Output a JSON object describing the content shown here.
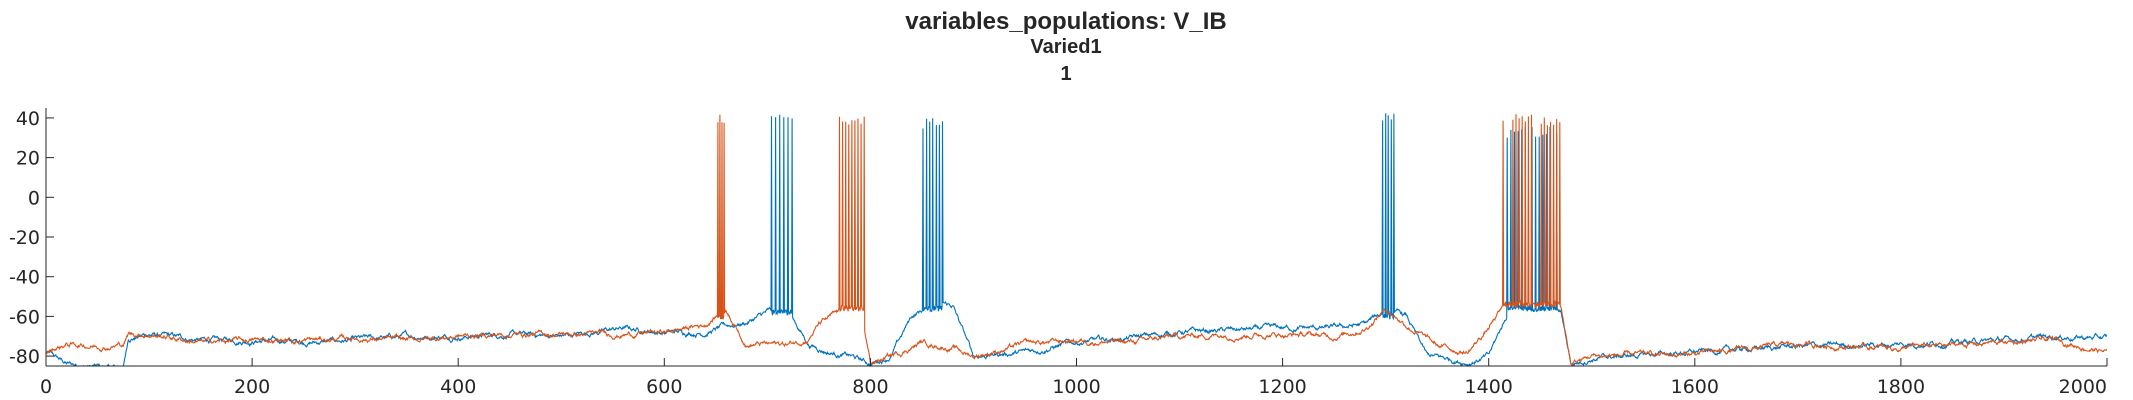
{
  "chart_data": {
    "type": "line",
    "title": "variables_populations: V_IB",
    "subtitle": "Varied1",
    "subtitle2": "1",
    "xlabel": "",
    "ylabel": "",
    "xlim": [
      0,
      2000
    ],
    "ylim": [
      -85,
      45
    ],
    "xticks": [
      0,
      200,
      400,
      600,
      800,
      1000,
      1200,
      1400,
      1600,
      1800,
      2000
    ],
    "yticks": [
      -80,
      -60,
      -40,
      -20,
      0,
      20,
      40
    ],
    "grid": false,
    "legend": "none",
    "series": [
      {
        "color": "#0072BD",
        "baseline": [
          [
            0,
            -78
          ],
          [
            20,
            -84
          ],
          [
            60,
            -86
          ],
          [
            75,
            -86
          ],
          [
            80,
            -71
          ],
          [
            100,
            -69
          ],
          [
            150,
            -72
          ],
          [
            200,
            -72
          ],
          [
            260,
            -73
          ],
          [
            300,
            -72
          ],
          [
            350,
            -70
          ],
          [
            400,
            -70
          ],
          [
            450,
            -69
          ],
          [
            500,
            -70
          ],
          [
            560,
            -66
          ],
          [
            600,
            -68
          ],
          [
            640,
            -68
          ],
          [
            660,
            -65
          ],
          [
            680,
            -63
          ],
          [
            700,
            -58
          ],
          [
            720,
            -57
          ],
          [
            740,
            -74
          ],
          [
            760,
            -78
          ],
          [
            780,
            -80
          ],
          [
            800,
            -84
          ],
          [
            820,
            -80
          ],
          [
            840,
            -60
          ],
          [
            860,
            -54
          ],
          [
            880,
            -55
          ],
          [
            900,
            -80
          ],
          [
            950,
            -78
          ],
          [
            1000,
            -73
          ],
          [
            1050,
            -71
          ],
          [
            1100,
            -68
          ],
          [
            1150,
            -67
          ],
          [
            1200,
            -66
          ],
          [
            1250,
            -66
          ],
          [
            1280,
            -64
          ],
          [
            1300,
            -57
          ],
          [
            1320,
            -60
          ],
          [
            1340,
            -80
          ],
          [
            1380,
            -83
          ],
          [
            1400,
            -80
          ],
          [
            1420,
            -57
          ],
          [
            1450,
            -56
          ],
          [
            1470,
            -58
          ],
          [
            1480,
            -84
          ],
          [
            1500,
            -81
          ],
          [
            1600,
            -78
          ],
          [
            1700,
            -75
          ],
          [
            1800,
            -74
          ],
          [
            1900,
            -72
          ],
          [
            1950,
            -70
          ],
          [
            2000,
            -71
          ]
        ],
        "bursts": [
          {
            "start": 704,
            "end": 724,
            "peak": 42,
            "trough": -58,
            "spikes": 5
          },
          {
            "start": 851,
            "end": 870,
            "peak": 40,
            "trough": -56,
            "spikes": 6
          },
          {
            "start": 1297,
            "end": 1308,
            "peak": 43,
            "trough": -60,
            "spikes": 4
          },
          {
            "start": 1418,
            "end": 1466,
            "peak": 36,
            "trough": -56,
            "spikes": 14
          }
        ]
      },
      {
        "color": "#D95319",
        "baseline": [
          [
            0,
            -78
          ],
          [
            20,
            -74
          ],
          [
            60,
            -75
          ],
          [
            75,
            -74
          ],
          [
            80,
            -69
          ],
          [
            100,
            -69
          ],
          [
            150,
            -73
          ],
          [
            200,
            -72
          ],
          [
            260,
            -72
          ],
          [
            300,
            -71
          ],
          [
            350,
            -72
          ],
          [
            400,
            -70
          ],
          [
            450,
            -69
          ],
          [
            500,
            -69
          ],
          [
            560,
            -69
          ],
          [
            600,
            -68
          ],
          [
            640,
            -64
          ],
          [
            650,
            -60
          ],
          [
            660,
            -57
          ],
          [
            680,
            -74
          ],
          [
            720,
            -74
          ],
          [
            740,
            -71
          ],
          [
            750,
            -64
          ],
          [
            770,
            -58
          ],
          [
            790,
            -57
          ],
          [
            800,
            -84
          ],
          [
            830,
            -78
          ],
          [
            850,
            -73
          ],
          [
            880,
            -76
          ],
          [
            900,
            -80
          ],
          [
            950,
            -74
          ],
          [
            1000,
            -72
          ],
          [
            1050,
            -73
          ],
          [
            1100,
            -70
          ],
          [
            1150,
            -69
          ],
          [
            1200,
            -69
          ],
          [
            1250,
            -70
          ],
          [
            1280,
            -66
          ],
          [
            1300,
            -56
          ],
          [
            1320,
            -64
          ],
          [
            1350,
            -75
          ],
          [
            1380,
            -78
          ],
          [
            1400,
            -66
          ],
          [
            1415,
            -55
          ],
          [
            1450,
            -53
          ],
          [
            1470,
            -55
          ],
          [
            1480,
            -84
          ],
          [
            1500,
            -80
          ],
          [
            1600,
            -79
          ],
          [
            1700,
            -74
          ],
          [
            1800,
            -76
          ],
          [
            1900,
            -73
          ],
          [
            1950,
            -72
          ],
          [
            2000,
            -78
          ]
        ],
        "bursts": [
          {
            "start": 652,
            "end": 658,
            "peak": 42,
            "trough": -60,
            "spikes": 3
          },
          {
            "start": 770,
            "end": 794,
            "peak": 42,
            "trough": -56,
            "spikes": 8
          },
          {
            "start": 1414,
            "end": 1469,
            "peak": 42,
            "trough": -54,
            "spikes": 18
          }
        ]
      }
    ]
  }
}
